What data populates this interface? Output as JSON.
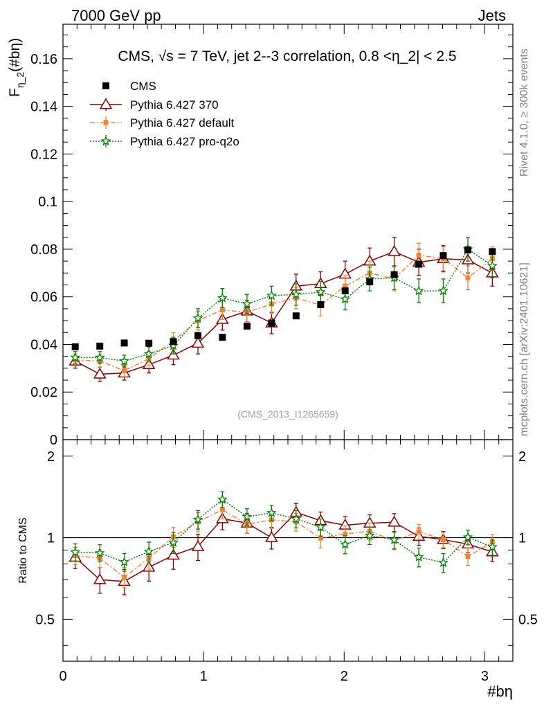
{
  "header": {
    "left": "7000 GeV pp",
    "right": "Jets"
  },
  "side_labels": {
    "rivet": "Rivet 4.1.0, ≥ 300k events",
    "mcplots": "mcplots.cern.ch [arXiv:2401.10621]"
  },
  "chart_data": {
    "type": "scatter",
    "title": "CMS, √s = 7 TeV, jet 2--3 correlation, 0.8 <η_2| < 2.5",
    "watermark": "(CMS_2013_I1265659)",
    "xlabel": "#bη",
    "ylabel": "F_{η_2}(#bη)",
    "ylabel_main": "F",
    "ylabel_sub": "η_2",
    "ylabel_tail": "(#bη)",
    "ratio_ylabel": "Ratio to CMS",
    "xlim": [
      0,
      3.2
    ],
    "ylim": [
      0,
      0.1745
    ],
    "ratio_ylim": [
      0.35,
      2.3
    ],
    "x_ticks": [
      "0",
      "1",
      "2",
      "3"
    ],
    "x_tick_values": [
      0,
      1,
      2,
      3
    ],
    "y_ticks": [
      "0",
      "0.02",
      "0.04",
      "0.06",
      "0.08",
      "0.1",
      "0.12",
      "0.14",
      "0.16"
    ],
    "y_tick_values": [
      0,
      0.02,
      0.04,
      0.06,
      0.08,
      0.1,
      0.12,
      0.14,
      0.16
    ],
    "ratio_ticks": [
      "0.5",
      "1",
      "2"
    ],
    "ratio_tick_values": [
      0.5,
      1,
      2
    ],
    "x": [
      0.087,
      0.262,
      0.436,
      0.611,
      0.785,
      0.96,
      1.134,
      1.309,
      1.484,
      1.658,
      1.833,
      2.007,
      2.182,
      2.356,
      2.531,
      2.705,
      2.88,
      3.054
    ],
    "series": [
      {
        "name": "CMS",
        "color": "#000000",
        "marker": "square",
        "values": [
          0.039,
          0.0393,
          0.0406,
          0.0405,
          0.0412,
          0.0437,
          0.043,
          0.0477,
          0.049,
          0.052,
          0.0567,
          0.0625,
          0.0663,
          0.0693,
          0.0737,
          0.0773,
          0.0797,
          0.079
        ],
        "errors": [
          0.0006,
          0.0006,
          0.0006,
          0.0006,
          0.0006,
          0.0006,
          0.0006,
          0.0006,
          0.0006,
          0.0006,
          0.0006,
          0.0006,
          0.0006,
          0.0006,
          0.0006,
          0.0006,
          0.0006,
          0.0006
        ]
      },
      {
        "name": "Pythia 6.427 370",
        "color": "#8b0000",
        "marker": "triangle",
        "values": [
          0.033,
          0.0275,
          0.028,
          0.0315,
          0.0355,
          0.0405,
          0.0505,
          0.054,
          0.049,
          0.0645,
          0.0655,
          0.0695,
          0.075,
          0.079,
          0.0745,
          0.076,
          0.0755,
          0.07
        ],
        "errors": [
          0.003,
          0.003,
          0.003,
          0.0035,
          0.004,
          0.0045,
          0.0045,
          0.0045,
          0.0045,
          0.005,
          0.005,
          0.0055,
          0.0055,
          0.006,
          0.0055,
          0.0055,
          0.0055,
          0.0055
        ]
      },
      {
        "name": "Pythia 6.427 default",
        "color": "#f58231",
        "marker": "filled-square",
        "values": [
          0.0335,
          0.033,
          0.029,
          0.034,
          0.0415,
          0.05,
          0.0545,
          0.0535,
          0.057,
          0.0595,
          0.0565,
          0.0645,
          0.07,
          0.0675,
          0.0775,
          0.076,
          0.068,
          0.076
        ],
        "errors": [
          0.0025,
          0.0025,
          0.0025,
          0.003,
          0.0035,
          0.004,
          0.004,
          0.004,
          0.004,
          0.0045,
          0.0045,
          0.0045,
          0.005,
          0.005,
          0.005,
          0.005,
          0.005,
          0.005
        ]
      },
      {
        "name": "Pythia 6.427 pro-q2o",
        "color": "#008000",
        "marker": "star",
        "values": [
          0.0345,
          0.0345,
          0.033,
          0.036,
          0.0395,
          0.051,
          0.0595,
          0.057,
          0.0605,
          0.061,
          0.062,
          0.059,
          0.0675,
          0.068,
          0.0625,
          0.0625,
          0.08,
          0.073
        ],
        "errors": [
          0.0025,
          0.0025,
          0.0025,
          0.003,
          0.0035,
          0.004,
          0.004,
          0.004,
          0.004,
          0.0045,
          0.0045,
          0.0045,
          0.005,
          0.005,
          0.005,
          0.005,
          0.005,
          0.005
        ]
      }
    ]
  }
}
